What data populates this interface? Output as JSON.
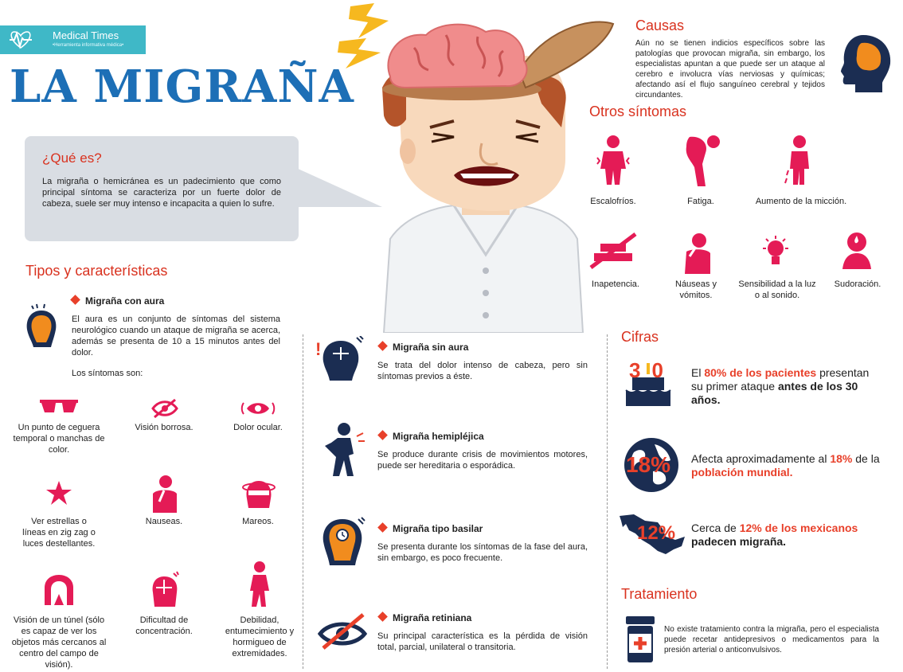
{
  "brand": {
    "name": "Medical Times",
    "tagline": "•Herramienta informativa médica•"
  },
  "title": "LA MIGRAÑA",
  "que_es": {
    "title": "¿Qué es?",
    "text": "La migraña o hemicránea es un padecimiento que como principal síntoma se caracteriza por un fuerte dolor de cabeza, suele ser muy intenso e incapacita a quien lo sufre."
  },
  "causas": {
    "title": "Causas",
    "text": "Aún no se tienen indicios específicos sobre las patologías que provocan migraña, sin embargo, los especialistas apuntan a que puede ser un ataque al cerebro e involucra vías nerviosas y químicas; afectando así el flujo sanguíneo cerebral y tejidos circundantes."
  },
  "otros": {
    "title": "Otros síntomas",
    "items": [
      "Escalofríos.",
      "Fatiga.",
      "Aumento de la micción.",
      "Inapetencia.",
      "Náuseas y vómitos.",
      "Sensibilidad a la luz o al sonido.",
      "Sudoración."
    ]
  },
  "tipos": {
    "title": "Tipos y  características",
    "aura": {
      "title": "Migraña con aura",
      "text": "El aura es un conjunto de síntomas del sistema neurológico cuando un ataque de migraña se acerca, además se presenta de 10 a 15 minutos antes del dolor.",
      "sintomas_label": "Los síntomas son:"
    },
    "sintomas": [
      "Un punto de ceguera temporal o manchas de color.",
      "Visión borrosa.",
      "Dolor ocular.",
      "Ver estrellas o líneas en zig zag o luces destellantes.",
      "Nauseas.",
      "Mareos.",
      "Visión de un túnel (sólo es capaz de ver los objetos más cercanos al centro del campo de visión).",
      "Dificultad de concentración.",
      "Debilidad, entumecimiento y hormigueo de extremidades."
    ],
    "otros_tipos": [
      {
        "title": "Migraña sin aura",
        "text": "Se trata del dolor intenso de cabeza, pero sin síntomas previos a éste."
      },
      {
        "title": "Migraña hemipléjica",
        "text": "Se produce durante crisis de movimientos motores, puede ser hereditaria o esporádica."
      },
      {
        "title": "Migraña tipo basilar",
        "text": "Se presenta durante los síntomas de la fase del aura, sin embargo, es poco frecuente."
      },
      {
        "title": "Migraña retiniana",
        "text": "Su principal característica es la pérdida de visión total, parcial, unilateral o transitoria."
      }
    ]
  },
  "cifras": {
    "title": "Cifras",
    "items": [
      {
        "badge": "30",
        "pre": "El ",
        "hl": "80% de los pacientes",
        "mid": " presentan su primer ataque ",
        "bold": "antes de los 30 años."
      },
      {
        "badge": "18%",
        "pre": "Afecta aproximadamente al ",
        "hl": "18%",
        "mid": " de la ",
        "hl2": "población mundial."
      },
      {
        "badge": "12%",
        "pre": "Cerca de ",
        "hl": "12% de los mexicanos",
        "bold": "padecen migraña."
      }
    ]
  },
  "tratamiento": {
    "title": "Tratamiento",
    "text": "No existe tratamiento contra la migraña, pero el especialista puede recetar antidepresivos o medicamentos para la presión arterial o anticonvulsivos."
  },
  "colors": {
    "red": "#e41b56",
    "title_blue": "#1d6fb6",
    "accent": "#e8402a",
    "navy": "#1b2d52",
    "teal": "#3fb8c7"
  }
}
